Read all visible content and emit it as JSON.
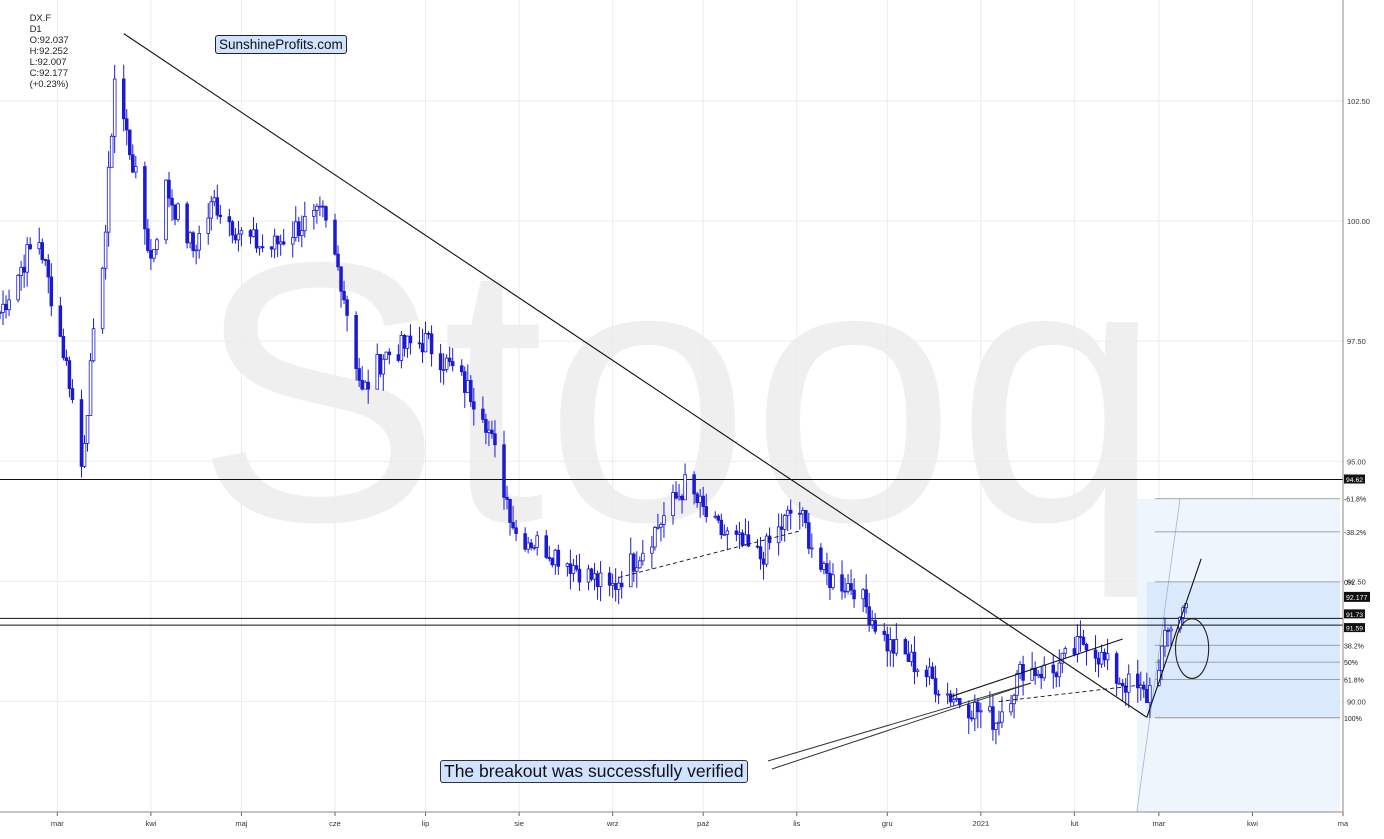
{
  "header": {
    "symbol": "DX.F",
    "interval": "D1",
    "open": "O:92.037",
    "high": "H:92.252",
    "low": "L:92.007",
    "close": "C:92.177",
    "change": "(+0.23%)"
  },
  "brand": "SunshineProfits.com",
  "watermark": "Stooq",
  "annotation": "The breakout was successfully verified",
  "colors": {
    "candle": "#1a1ad2",
    "grid": "#ececec",
    "fib_fill": "#d6e8fb",
    "line": "#111111"
  },
  "chart_data": {
    "type": "candlestick",
    "ylim": [
      87.7,
      104.6
    ],
    "y_ticks": [
      90.0,
      92.5,
      95.0,
      97.5,
      100.0,
      102.5
    ],
    "y_tick_labels": [
      "90.00",
      "92.50",
      "95.00",
      "97.50",
      "100.00",
      "102.50"
    ],
    "x_start": "2020-02-11",
    "x_end": "2021-05-01",
    "x_ticks": [
      {
        "date": "2020-03-01",
        "label": "mar"
      },
      {
        "date": "2020-04-01",
        "label": "kwi"
      },
      {
        "date": "2020-05-01",
        "label": "maj"
      },
      {
        "date": "2020-06-01",
        "label": "cze"
      },
      {
        "date": "2020-07-01",
        "label": "lip"
      },
      {
        "date": "2020-08-01",
        "label": "sie"
      },
      {
        "date": "2020-09-01",
        "label": "wrz"
      },
      {
        "date": "2020-10-01",
        "label": "paź"
      },
      {
        "date": "2020-11-01",
        "label": "lis"
      },
      {
        "date": "2020-12-01",
        "label": "gru"
      },
      {
        "date": "2021-01-01",
        "label": "2021"
      },
      {
        "date": "2021-02-01",
        "label": "lut"
      },
      {
        "date": "2021-03-01",
        "label": "mar"
      },
      {
        "date": "2021-04-01",
        "label": "kwi"
      },
      {
        "date": "2021-05-01",
        "label": "ma"
      }
    ],
    "price_path": [
      [
        "2020-02-11",
        98.1
      ],
      [
        "2020-02-20",
        99.3
      ],
      [
        "2020-02-24",
        99.6
      ],
      [
        "2020-03-01",
        97.9
      ],
      [
        "2020-03-05",
        96.7
      ],
      [
        "2020-03-09",
        94.9
      ],
      [
        "2020-03-13",
        97.5
      ],
      [
        "2020-03-17",
        99.8
      ],
      [
        "2020-03-20",
        103.0
      ],
      [
        "2020-03-26",
        101.2
      ],
      [
        "2020-04-01",
        99.2
      ],
      [
        "2020-04-06",
        100.7
      ],
      [
        "2020-04-15",
        99.4
      ],
      [
        "2020-04-22",
        100.4
      ],
      [
        "2020-05-01",
        99.7
      ],
      [
        "2020-05-10",
        99.4
      ],
      [
        "2020-05-20",
        99.9
      ],
      [
        "2020-05-28",
        100.1
      ],
      [
        "2020-06-03",
        98.8
      ],
      [
        "2020-06-10",
        96.4
      ],
      [
        "2020-06-17",
        97.2
      ],
      [
        "2020-06-25",
        97.4
      ],
      [
        "2020-07-01",
        97.5
      ],
      [
        "2020-07-10",
        96.9
      ],
      [
        "2020-07-20",
        96.1
      ],
      [
        "2020-07-31",
        93.5
      ],
      [
        "2020-08-10",
        93.2
      ],
      [
        "2020-08-20",
        92.8
      ],
      [
        "2020-08-31",
        92.3
      ],
      [
        "2020-09-10",
        93.1
      ],
      [
        "2020-09-25",
        94.5
      ],
      [
        "2020-10-05",
        93.6
      ],
      [
        "2020-10-20",
        93.0
      ],
      [
        "2020-11-01",
        94.1
      ],
      [
        "2020-11-10",
        92.6
      ],
      [
        "2020-11-20",
        92.4
      ],
      [
        "2020-12-01",
        91.2
      ],
      [
        "2020-12-10",
        90.8
      ],
      [
        "2020-12-20",
        90.2
      ],
      [
        "2021-01-06",
        89.6
      ],
      [
        "2021-01-15",
        90.7
      ],
      [
        "2021-01-25",
        90.6
      ],
      [
        "2021-02-05",
        91.3
      ],
      [
        "2021-02-15",
        90.5
      ],
      [
        "2021-02-25",
        90.1
      ],
      [
        "2021-03-05",
        91.6
      ],
      [
        "2021-03-10",
        92.0
      ]
    ],
    "horizontal_levels": [
      {
        "value": 94.62,
        "label": "94.62"
      },
      {
        "value": 91.73,
        "label": "91.73"
      },
      {
        "value": 91.59,
        "label": "91.59"
      }
    ],
    "last_price": {
      "value": 92.177,
      "label": "92.177"
    },
    "fibonacci": {
      "start_date": "2021-02-25",
      "end_date": "2021-04-30",
      "levels": [
        {
          "value": 94.22,
          "label": "-61.8%"
        },
        {
          "value": 93.53,
          "label": "-38.2%"
        },
        {
          "value": 92.49,
          "label": "0%"
        },
        {
          "value": 91.17,
          "label": "38.2%"
        },
        {
          "value": 90.82,
          "label": "50%"
        },
        {
          "value": 90.46,
          "label": "61.8%"
        },
        {
          "value": 89.66,
          "label": "100%"
        }
      ]
    },
    "trendlines": [
      {
        "from": [
          "2020-03-23",
          103.9
        ],
        "to": [
          "2021-02-25",
          89.67
        ],
        "style": "solid"
      },
      {
        "from": [
          "2020-12-22",
          90.1
        ],
        "to": [
          "2021-02-17",
          91.3
        ],
        "style": "solid"
      },
      {
        "from": [
          "2021-02-25",
          89.67
        ],
        "to": [
          "2021-03-15",
          92.97
        ],
        "style": "solid"
      },
      {
        "from": [
          "2020-09-03",
          92.58
        ],
        "to": [
          "2020-11-02",
          93.55
        ],
        "style": "dashed"
      },
      {
        "from": [
          "2021-01-07",
          90.0
        ],
        "to": [
          "2021-02-24",
          90.35
        ],
        "style": "dashed"
      }
    ],
    "ellipse": {
      "center": [
        "2021-03-12",
        91.1
      ],
      "rx_days": 5.5,
      "ry": 0.62
    }
  }
}
